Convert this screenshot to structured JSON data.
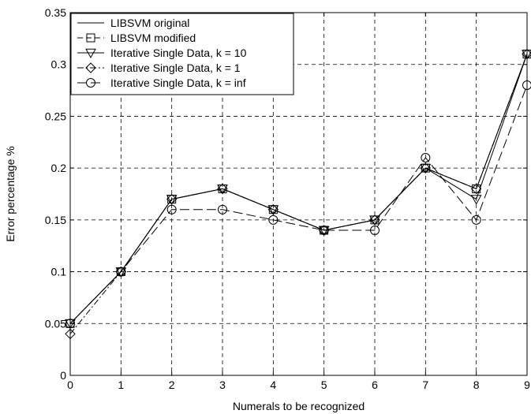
{
  "chart_data": {
    "type": "line",
    "title": "",
    "xlabel": "Numerals to be recognized",
    "ylabel": "Error percentage %",
    "xlim": [
      0,
      9
    ],
    "ylim": [
      0,
      0.35
    ],
    "x": [
      0,
      1,
      2,
      3,
      4,
      5,
      6,
      7,
      8,
      9
    ],
    "x_ticks": [
      "0",
      "1",
      "2",
      "3",
      "4",
      "5",
      "6",
      "7",
      "8",
      "9"
    ],
    "y_ticks": [
      "0",
      "0.05",
      "0.1",
      "0.15",
      "0.2",
      "0.25",
      "0.3",
      "0.35"
    ],
    "y_tick_values": [
      0,
      0.05,
      0.1,
      0.15,
      0.2,
      0.25,
      0.3,
      0.35
    ],
    "grid": true,
    "legend_position": "top-left",
    "series": [
      {
        "name": "LIBSVM original",
        "marker": "none",
        "dash": "solid",
        "values": [
          0.05,
          0.1,
          0.17,
          0.18,
          0.16,
          0.14,
          0.15,
          0.2,
          0.18,
          0.31
        ]
      },
      {
        "name": "LIBSVM modified",
        "marker": "square",
        "dash": "dash",
        "values": [
          0.05,
          0.1,
          0.17,
          0.18,
          0.16,
          0.14,
          0.15,
          0.2,
          0.18,
          0.31
        ]
      },
      {
        "name": "Iterative Single Data, k = 10",
        "marker": "triangle-down",
        "dash": "solid",
        "values": [
          0.05,
          0.1,
          0.17,
          0.18,
          0.16,
          0.14,
          0.15,
          0.2,
          0.17,
          0.31
        ]
      },
      {
        "name": "Iterative Single Data, k = 1",
        "marker": "diamond",
        "dash": "dashdot",
        "values": [
          0.04,
          0.1,
          0.17,
          0.18,
          0.16,
          0.14,
          0.15,
          0.2,
          0.18,
          0.31
        ]
      },
      {
        "name": "Iterative Single Data, k = inf",
        "marker": "circle",
        "dash": "longdash",
        "values": [
          0.05,
          0.1,
          0.16,
          0.16,
          0.15,
          0.14,
          0.14,
          0.21,
          0.15,
          0.28
        ]
      }
    ]
  }
}
